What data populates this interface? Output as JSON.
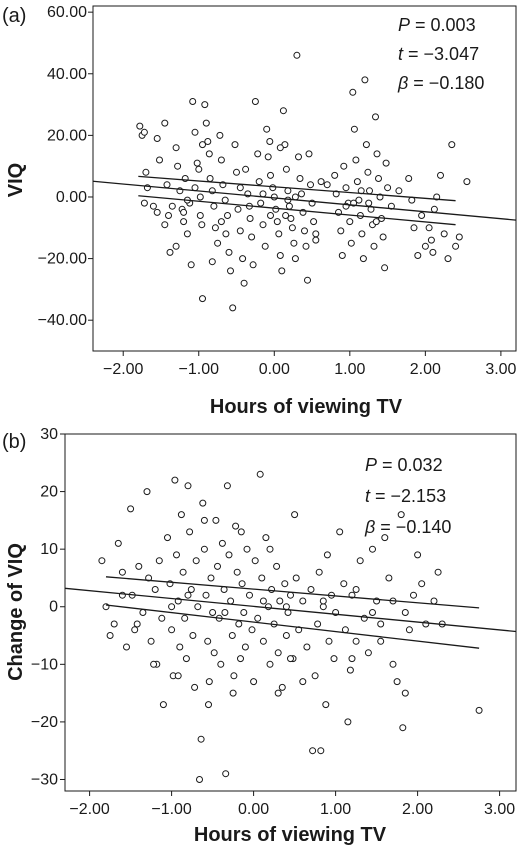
{
  "chart_data": [
    {
      "type": "scatter",
      "panel_label": "(a)",
      "xlabel": "Hours of viewing TV",
      "ylabel": "VIQ",
      "xlim": [
        -2.4,
        3.2
      ],
      "ylim": [
        -50,
        62
      ],
      "xticks": [
        -2,
        -1,
        0,
        1,
        2,
        3
      ],
      "xtick_labels": [
        "−2.00",
        "−1.00",
        "0.00",
        "1.00",
        "2.00",
        "3.00"
      ],
      "yticks": [
        60,
        40,
        20,
        0,
        -20,
        -40
      ],
      "ytick_labels": [
        "60.00",
        "40.00",
        "20.00",
        "0.00",
        "−20.00",
        "−40.00"
      ],
      "stats": [
        {
          "symbol": "P",
          "text": " = 0.003"
        },
        {
          "symbol": "t",
          "text": " = −3.047"
        },
        {
          "symbol": "β",
          "text": " = −0.180"
        }
      ],
      "fit_line": {
        "x": [
          -2.4,
          3.2
        ],
        "y": [
          5.1,
          -7.5
        ]
      },
      "ci_upper": {
        "x": [
          -1.8,
          2.4
        ],
        "y": [
          6.7,
          -1.2
        ]
      },
      "ci_lower": {
        "x": [
          -1.8,
          2.4
        ],
        "y": [
          0.4,
          -9.0
        ]
      },
      "grid": false,
      "points": [
        [
          -1.78,
          23
        ],
        [
          -1.75,
          20
        ],
        [
          -1.72,
          21
        ],
        [
          -1.7,
          8
        ],
        [
          -1.68,
          3
        ],
        [
          -1.72,
          -2
        ],
        [
          -1.55,
          19
        ],
        [
          -1.52,
          12
        ],
        [
          -1.6,
          -3
        ],
        [
          -1.55,
          -5
        ],
        [
          -1.45,
          24
        ],
        [
          -1.42,
          4
        ],
        [
          -1.4,
          -6
        ],
        [
          -1.35,
          -3
        ],
        [
          -1.38,
          -18
        ],
        [
          -1.3,
          16
        ],
        [
          -1.28,
          10
        ],
        [
          -1.25,
          2
        ],
        [
          -1.22,
          -4
        ],
        [
          -1.2,
          -8
        ],
        [
          -1.18,
          6
        ],
        [
          -1.15,
          -12
        ],
        [
          -1.12,
          -2
        ],
        [
          -1.1,
          -22
        ],
        [
          -1.08,
          31
        ],
        [
          -1.05,
          21
        ],
        [
          -1.02,
          11
        ],
        [
          -1.0,
          9
        ],
        [
          -0.98,
          0
        ],
        [
          -0.96,
          -9
        ],
        [
          -0.95,
          -33
        ],
        [
          -0.92,
          30
        ],
        [
          -0.9,
          24
        ],
        [
          -0.88,
          18
        ],
        [
          -0.86,
          14
        ],
        [
          -0.85,
          6
        ],
        [
          -0.82,
          2
        ],
        [
          -0.8,
          -3
        ],
        [
          -0.78,
          -10
        ],
        [
          -0.75,
          -15
        ],
        [
          -0.72,
          20
        ],
        [
          -0.7,
          12
        ],
        [
          -0.68,
          4
        ],
        [
          -0.65,
          -1
        ],
        [
          -0.62,
          -6
        ],
        [
          -0.6,
          -18
        ],
        [
          -0.58,
          -24
        ],
        [
          -0.55,
          -36
        ],
        [
          -0.52,
          17
        ],
        [
          -0.5,
          8
        ],
        [
          -0.48,
          -4
        ],
        [
          -0.45,
          -11
        ],
        [
          -0.42,
          -20
        ],
        [
          -0.4,
          -28
        ],
        [
          -0.38,
          9
        ],
        [
          -0.35,
          1
        ],
        [
          -0.32,
          -7
        ],
        [
          -0.3,
          -13
        ],
        [
          -0.28,
          -22
        ],
        [
          -0.25,
          31
        ],
        [
          -0.22,
          14
        ],
        [
          -0.2,
          5
        ],
        [
          -0.18,
          -2
        ],
        [
          -0.15,
          -9
        ],
        [
          -0.12,
          -16
        ],
        [
          -0.1,
          22
        ],
        [
          -0.08,
          13
        ],
        [
          -0.05,
          7
        ],
        [
          -0.02,
          3
        ],
        [
          0.0,
          0
        ],
        [
          0.02,
          -4
        ],
        [
          0.04,
          -8
        ],
        [
          0.06,
          -12
        ],
        [
          0.08,
          -19
        ],
        [
          0.1,
          -24
        ],
        [
          0.12,
          28
        ],
        [
          0.14,
          17
        ],
        [
          0.16,
          9
        ],
        [
          0.18,
          2
        ],
        [
          0.2,
          -3
        ],
        [
          0.22,
          -7
        ],
        [
          0.24,
          -10
        ],
        [
          0.26,
          -15
        ],
        [
          0.28,
          -20
        ],
        [
          0.3,
          46
        ],
        [
          0.32,
          13
        ],
        [
          0.34,
          6
        ],
        [
          0.36,
          1
        ],
        [
          0.38,
          -5
        ],
        [
          0.4,
          -11
        ],
        [
          0.42,
          -16
        ],
        [
          0.44,
          -27
        ],
        [
          0.46,
          14
        ],
        [
          0.48,
          4
        ],
        [
          0.5,
          -2
        ],
        [
          0.52,
          -8
        ],
        [
          0.55,
          -14
        ],
        [
          -0.06,
          18
        ],
        [
          0.08,
          16
        ],
        [
          0.18,
          -1
        ],
        [
          0.8,
          7
        ],
        [
          0.82,
          1
        ],
        [
          0.85,
          -5
        ],
        [
          0.88,
          -11
        ],
        [
          0.9,
          -19
        ],
        [
          0.92,
          10
        ],
        [
          0.95,
          3
        ],
        [
          0.98,
          -2
        ],
        [
          1.0,
          -8
        ],
        [
          1.02,
          -15
        ],
        [
          1.04,
          34
        ],
        [
          1.06,
          22
        ],
        [
          1.08,
          12
        ],
        [
          1.1,
          5
        ],
        [
          1.12,
          -1
        ],
        [
          1.14,
          -6
        ],
        [
          1.16,
          -12
        ],
        [
          1.18,
          -20
        ],
        [
          1.2,
          38
        ],
        [
          1.22,
          17
        ],
        [
          1.24,
          8
        ],
        [
          1.26,
          2
        ],
        [
          1.28,
          -4
        ],
        [
          1.3,
          -9
        ],
        [
          1.32,
          -16
        ],
        [
          1.34,
          26
        ],
        [
          1.36,
          14
        ],
        [
          1.38,
          6
        ],
        [
          1.4,
          0
        ],
        [
          1.42,
          -7
        ],
        [
          1.44,
          -13
        ],
        [
          1.46,
          -23
        ],
        [
          1.48,
          11
        ],
        [
          1.5,
          3
        ],
        [
          1.55,
          -3
        ],
        [
          1.65,
          2
        ],
        [
          1.78,
          6
        ],
        [
          1.82,
          -1
        ],
        [
          1.85,
          -10
        ],
        [
          1.9,
          -19
        ],
        [
          1.95,
          -6
        ],
        [
          2.0,
          -16
        ],
        [
          2.05,
          -10
        ],
        [
          2.08,
          -14
        ],
        [
          2.1,
          -18
        ],
        [
          2.12,
          -4
        ],
        [
          2.15,
          0
        ],
        [
          2.2,
          7
        ],
        [
          2.25,
          -12
        ],
        [
          2.3,
          -20
        ],
        [
          2.35,
          17
        ],
        [
          2.4,
          -16
        ],
        [
          2.45,
          -13
        ],
        [
          2.55,
          5
        ],
        [
          -1.45,
          -9
        ],
        [
          -1.3,
          -16
        ],
        [
          -1.15,
          -1
        ],
        [
          -0.95,
          17
        ],
        [
          -0.7,
          -8
        ],
        [
          -0.45,
          3
        ],
        [
          -0.15,
          1
        ],
        [
          0.15,
          -6
        ],
        [
          0.95,
          -3
        ],
        [
          1.25,
          -2
        ],
        [
          0.28,
          0
        ],
        [
          -0.98,
          -6
        ],
        [
          -1.05,
          3
        ],
        [
          -0.64,
          -12
        ],
        [
          0.62,
          5
        ],
        [
          -0.33,
          -3
        ],
        [
          1.15,
          2
        ],
        [
          1.05,
          -2
        ],
        [
          0.7,
          4
        ],
        [
          0.55,
          -12
        ],
        [
          -0.82,
          -21
        ],
        [
          -1.2,
          -5
        ],
        [
          1.35,
          -8
        ],
        [
          -0.05,
          -6
        ]
      ]
    },
    {
      "type": "scatter",
      "panel_label": "(b)",
      "xlabel": "Hours of viewing TV",
      "ylabel": "Change of VIQ",
      "xlim": [
        -2.3,
        3.2
      ],
      "ylim": [
        -32,
        30
      ],
      "xticks": [
        -2,
        -1,
        0,
        1,
        2,
        3
      ],
      "xtick_labels": [
        "−2.00",
        "−1.00",
        "0.00",
        "1.00",
        "2.00",
        "3.00"
      ],
      "yticks": [
        30,
        20,
        10,
        0,
        -10,
        -20,
        -30
      ],
      "ytick_labels": [
        "30",
        "20",
        "10",
        "0",
        "−10",
        "−20",
        "−30"
      ],
      "stats": [
        {
          "symbol": "P",
          "text": " = 0.032"
        },
        {
          "symbol": "t",
          "text": " = −2.153"
        },
        {
          "symbol": "β",
          "text": " = −0.140"
        }
      ],
      "fit_line": {
        "x": [
          -2.3,
          3.2
        ],
        "y": [
          3.2,
          -4.3
        ]
      },
      "ci_upper": {
        "x": [
          -1.8,
          2.75
        ],
        "y": [
          5.2,
          -0.2
        ]
      },
      "ci_lower": {
        "x": [
          -1.8,
          2.75
        ],
        "y": [
          0.3,
          -7.2
        ]
      },
      "grid": false,
      "points": [
        [
          -1.85,
          8
        ],
        [
          -1.8,
          0
        ],
        [
          -1.7,
          -3
        ],
        [
          -1.65,
          11
        ],
        [
          -1.6,
          6
        ],
        [
          -1.55,
          -7
        ],
        [
          -1.5,
          17
        ],
        [
          -1.48,
          2
        ],
        [
          -1.45,
          -4
        ],
        [
          -1.4,
          7
        ],
        [
          -1.35,
          -1
        ],
        [
          -1.3,
          20
        ],
        [
          -1.28,
          5
        ],
        [
          -1.25,
          -6
        ],
        [
          -1.2,
          3
        ],
        [
          -1.18,
          -10
        ],
        [
          -1.15,
          8
        ],
        [
          -1.12,
          -2
        ],
        [
          -1.1,
          -17
        ],
        [
          -1.05,
          12
        ],
        [
          -1.02,
          4
        ],
        [
          -1.0,
          -4
        ],
        [
          -0.98,
          -12
        ],
        [
          -0.96,
          22
        ],
        [
          -0.94,
          9
        ],
        [
          -0.92,
          1
        ],
        [
          -0.9,
          -7
        ],
        [
          -0.88,
          16
        ],
        [
          -0.86,
          6
        ],
        [
          -0.84,
          -2
        ],
        [
          -0.82,
          -9
        ],
        [
          -0.8,
          21
        ],
        [
          -0.78,
          13
        ],
        [
          -0.76,
          3
        ],
        [
          -0.74,
          -5
        ],
        [
          -0.72,
          -14
        ],
        [
          -0.7,
          8
        ],
        [
          -0.68,
          0
        ],
        [
          -0.66,
          -30
        ],
        [
          -0.64,
          -23
        ],
        [
          -0.62,
          18
        ],
        [
          -0.6,
          10
        ],
        [
          -0.58,
          2
        ],
        [
          -0.56,
          -6
        ],
        [
          -0.54,
          -13
        ],
        [
          -0.52,
          5
        ],
        [
          -0.5,
          -1
        ],
        [
          -0.48,
          -8
        ],
        [
          -0.46,
          15
        ],
        [
          -0.44,
          7
        ],
        [
          -0.42,
          -2
        ],
        [
          -0.4,
          -10
        ],
        [
          -0.38,
          11
        ],
        [
          -0.36,
          3
        ],
        [
          -0.34,
          -29
        ],
        [
          -0.32,
          21
        ],
        [
          -0.3,
          9
        ],
        [
          -0.28,
          1
        ],
        [
          -0.26,
          -5
        ],
        [
          -0.24,
          -12
        ],
        [
          -0.22,
          14
        ],
        [
          -0.2,
          6
        ],
        [
          -0.18,
          -3
        ],
        [
          -0.16,
          -9
        ],
        [
          -0.14,
          4
        ],
        [
          -0.12,
          -1
        ],
        [
          -0.1,
          -7
        ],
        [
          -0.08,
          10
        ],
        [
          -0.05,
          2
        ],
        [
          -0.02,
          -4
        ],
        [
          0.0,
          -13
        ],
        [
          0.02,
          8
        ],
        [
          0.05,
          -2
        ],
        [
          0.08,
          23
        ],
        [
          0.1,
          5
        ],
        [
          0.12,
          -6
        ],
        [
          0.15,
          12
        ],
        [
          0.18,
          0
        ],
        [
          0.2,
          -10
        ],
        [
          0.22,
          3
        ],
        [
          0.25,
          -3
        ],
        [
          0.28,
          7
        ],
        [
          0.3,
          -8
        ],
        [
          0.32,
          1
        ],
        [
          0.35,
          -14
        ],
        [
          0.38,
          4
        ],
        [
          0.4,
          -5
        ],
        [
          0.42,
          -1
        ],
        [
          0.45,
          2
        ],
        [
          0.48,
          -9
        ],
        [
          0.5,
          16
        ],
        [
          0.52,
          5
        ],
        [
          0.55,
          -4
        ],
        [
          0.6,
          1
        ],
        [
          0.65,
          -7
        ],
        [
          0.7,
          3
        ],
        [
          0.72,
          -25
        ],
        [
          0.75,
          -12
        ],
        [
          0.78,
          -3
        ],
        [
          0.8,
          6
        ],
        [
          0.82,
          -25
        ],
        [
          0.85,
          0
        ],
        [
          0.88,
          -17
        ],
        [
          0.9,
          9
        ],
        [
          0.92,
          -6
        ],
        [
          0.95,
          2
        ],
        [
          0.98,
          -9
        ],
        [
          1.0,
          -1
        ],
        [
          1.05,
          13
        ],
        [
          1.1,
          4
        ],
        [
          1.12,
          -4
        ],
        [
          1.15,
          -20
        ],
        [
          1.18,
          -11
        ],
        [
          1.2,
          2
        ],
        [
          1.25,
          -6
        ],
        [
          1.3,
          8
        ],
        [
          1.35,
          -2
        ],
        [
          1.4,
          -8
        ],
        [
          1.45,
          10
        ],
        [
          1.5,
          1
        ],
        [
          1.55,
          -3
        ],
        [
          1.6,
          12
        ],
        [
          1.65,
          5
        ],
        [
          1.7,
          -10
        ],
        [
          1.75,
          -13
        ],
        [
          1.8,
          16
        ],
        [
          1.82,
          -21
        ],
        [
          1.85,
          -15
        ],
        [
          1.9,
          -4
        ],
        [
          1.95,
          2
        ],
        [
          2.0,
          9
        ],
        [
          2.05,
          4
        ],
        [
          2.1,
          -3
        ],
        [
          2.2,
          1
        ],
        [
          2.25,
          6
        ],
        [
          2.3,
          -3
        ],
        [
          2.75,
          -18
        ],
        [
          -1.75,
          -5
        ],
        [
          -1.42,
          -3
        ],
        [
          -1.22,
          -10
        ],
        [
          -0.92,
          -12
        ],
        [
          -0.55,
          -17
        ],
        [
          -0.25,
          -15
        ],
        [
          0.3,
          -15
        ],
        [
          0.6,
          -13
        ],
        [
          1.2,
          -9
        ],
        [
          1.55,
          -6
        ],
        [
          -0.6,
          15
        ],
        [
          -0.15,
          13
        ],
        [
          0.2,
          10
        ],
        [
          0.45,
          -9
        ],
        [
          -1.0,
          0
        ],
        [
          -0.35,
          -1
        ],
        [
          0.12,
          1
        ],
        [
          0.85,
          1
        ],
        [
          1.45,
          -1
        ],
        [
          1.7,
          1
        ],
        [
          -1.6,
          2
        ],
        [
          -0.8,
          2
        ],
        [
          0.4,
          0
        ],
        [
          1.85,
          -1
        ],
        [
          1.25,
          3
        ]
      ]
    }
  ]
}
